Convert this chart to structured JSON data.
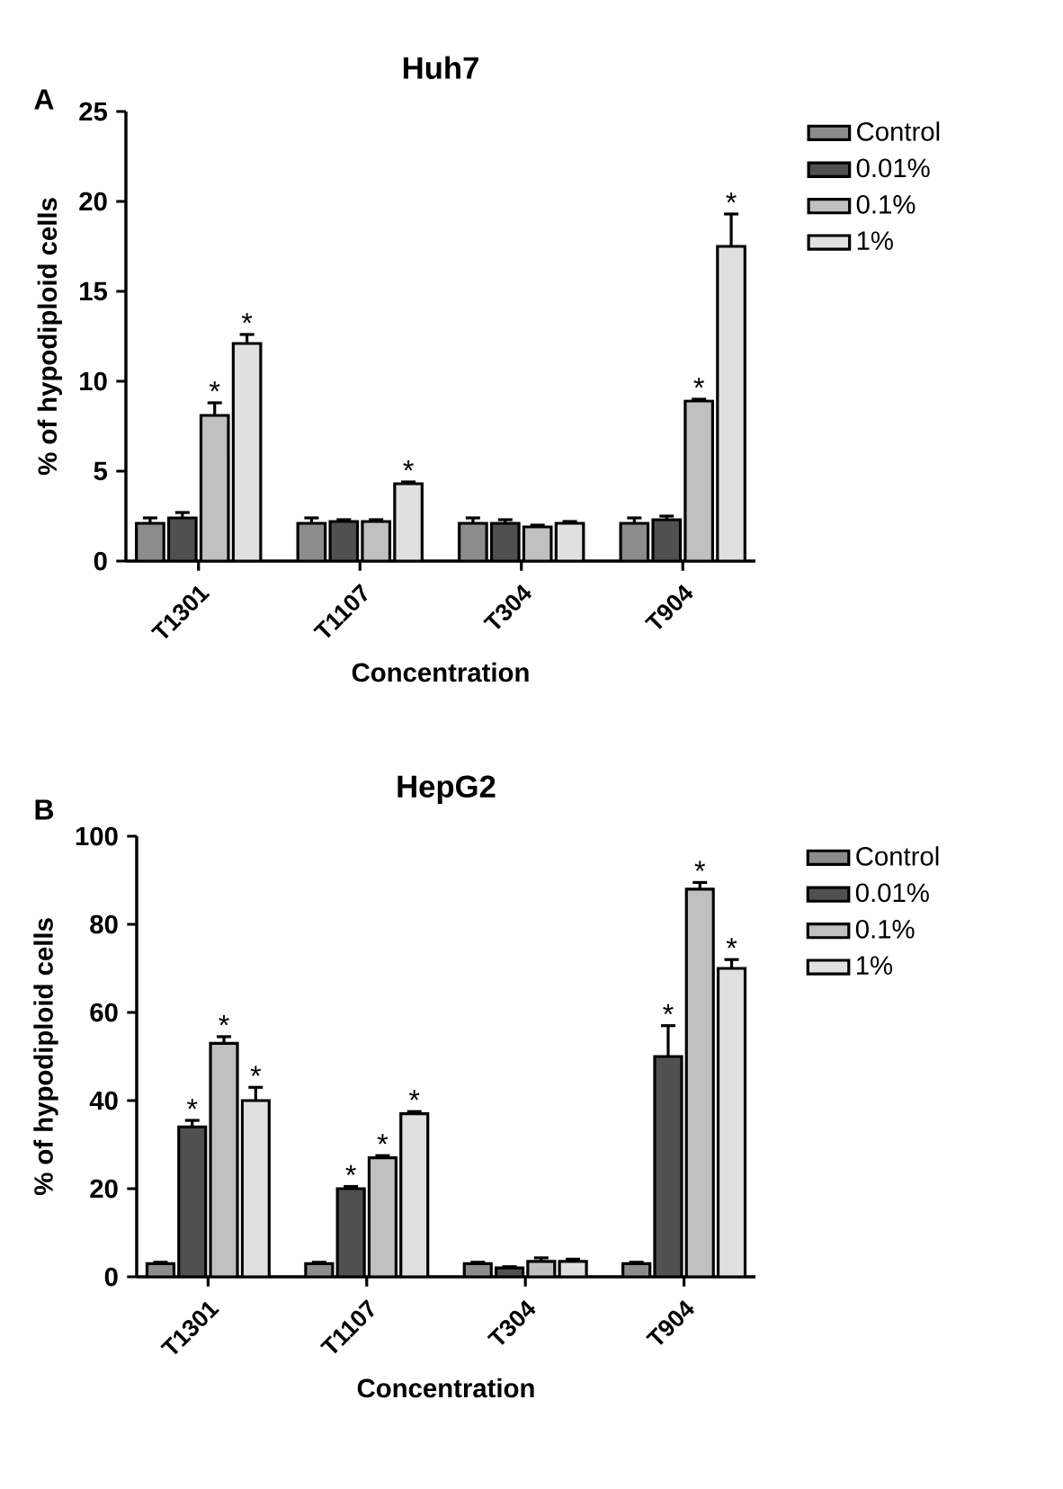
{
  "chart_data": [
    {
      "type": "bar",
      "title": "Huh7",
      "xlabel": "Concentration",
      "ylabel": "% of hypodiploid cells",
      "annotations": [
        "A"
      ],
      "categories": [
        "T1301",
        "T1107",
        "T304",
        "T904"
      ],
      "ylim": [
        0,
        25
      ],
      "yticks": [
        0,
        5,
        10,
        15,
        20,
        25
      ],
      "legend": "right",
      "series": [
        {
          "name": "Control",
          "color": "#8c8c8c",
          "values": [
            2.1,
            2.1,
            2.1,
            2.1
          ],
          "errors": [
            0.3,
            0.3,
            0.3,
            0.3
          ],
          "value_labels": [
            null,
            null,
            null,
            null
          ]
        },
        {
          "name": "0.01%",
          "color": "#505050",
          "values": [
            2.4,
            2.2,
            2.1,
            2.3
          ],
          "errors": [
            0.3,
            0.1,
            0.2,
            0.2
          ],
          "value_labels": [
            null,
            null,
            null,
            null
          ]
        },
        {
          "name": "0.1%",
          "color": "#c0c0c0",
          "values": [
            8.1,
            2.2,
            1.9,
            8.9
          ],
          "errors": [
            0.7,
            0.1,
            0.1,
            0.1
          ],
          "value_labels": [
            "*",
            null,
            null,
            "*"
          ]
        },
        {
          "name": "1%",
          "color": "#e0e0e0",
          "values": [
            12.1,
            4.3,
            2.1,
            17.5
          ],
          "errors": [
            0.5,
            0.1,
            0.1,
            1.8
          ],
          "value_labels": [
            "*",
            "*",
            null,
            "*"
          ]
        }
      ]
    },
    {
      "type": "bar",
      "title": "HepG2",
      "xlabel": "Concentration",
      "ylabel": "% of hypodiploid cells",
      "annotations": [
        "B"
      ],
      "categories": [
        "T1301",
        "T1107",
        "T304",
        "T904"
      ],
      "ylim": [
        0,
        100
      ],
      "yticks": [
        0,
        20,
        40,
        60,
        80,
        100
      ],
      "legend": "right",
      "series": [
        {
          "name": "Control",
          "color": "#8c8c8c",
          "values": [
            3,
            3,
            3,
            3
          ],
          "errors": [
            0.3,
            0.3,
            0.3,
            0.3
          ],
          "value_labels": [
            null,
            null,
            null,
            null
          ]
        },
        {
          "name": "0.01%",
          "color": "#505050",
          "values": [
            34,
            20,
            2,
            50
          ],
          "errors": [
            1.5,
            0.5,
            0.3,
            7
          ],
          "value_labels": [
            "*",
            "*",
            null,
            "*"
          ]
        },
        {
          "name": "0.1%",
          "color": "#c0c0c0",
          "values": [
            53,
            27,
            3.5,
            88
          ],
          "errors": [
            1.5,
            0.5,
            0.8,
            1.5
          ],
          "value_labels": [
            "*",
            "*",
            null,
            "*"
          ]
        },
        {
          "name": "1%",
          "color": "#e0e0e0",
          "values": [
            40,
            37,
            3.5,
            70
          ],
          "errors": [
            3,
            0.5,
            0.5,
            2
          ],
          "value_labels": [
            "*",
            "*",
            null,
            "*"
          ]
        }
      ]
    }
  ]
}
